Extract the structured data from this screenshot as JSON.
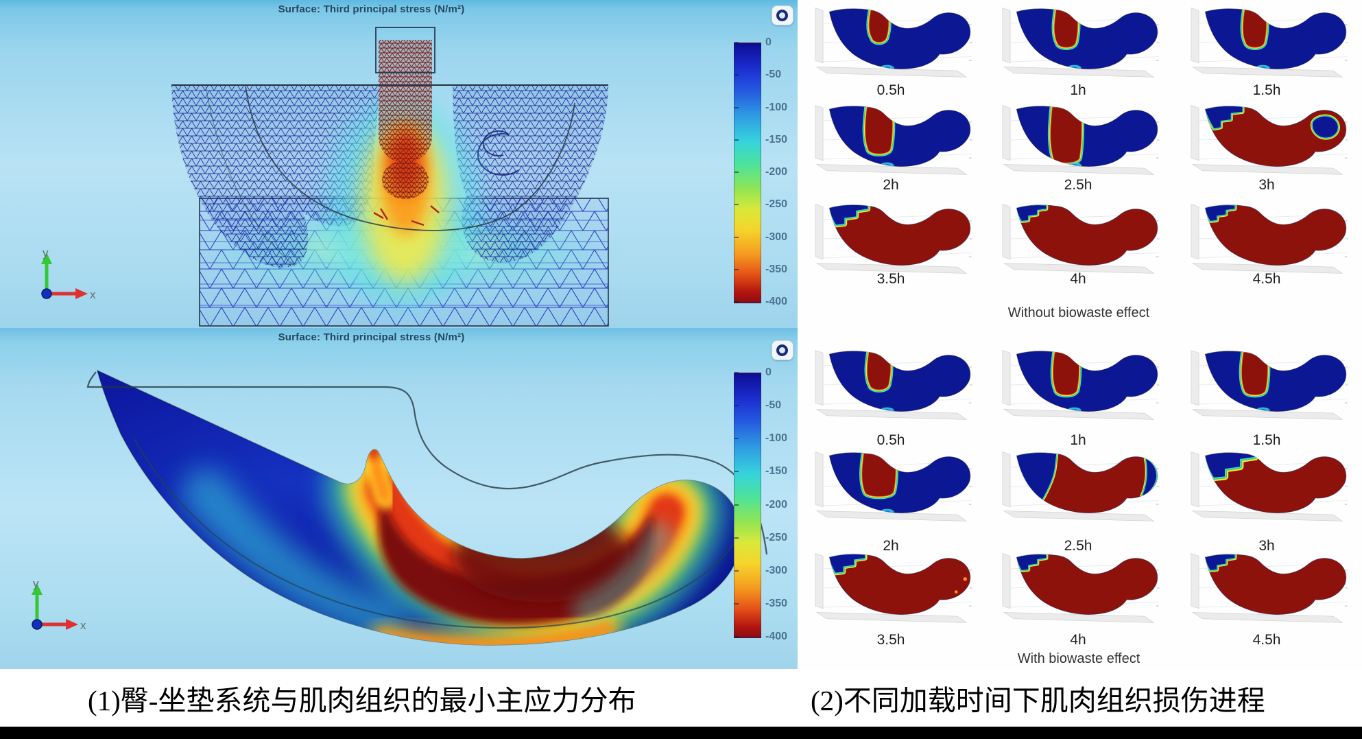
{
  "left": {
    "plots": [
      {
        "title": "Surface: Third principal stress (N/m²)",
        "colorbar": {
          "ticks": [
            "0",
            "-50",
            "-100",
            "-150",
            "-200",
            "-250",
            "-300",
            "-350",
            "-400"
          ]
        },
        "axis": {
          "x": "x",
          "y": "y"
        }
      },
      {
        "title": "Surface: Third principal stress (N/m²)",
        "colorbar": {
          "ticks": [
            "0",
            "-50",
            "-100",
            "-150",
            "-200",
            "-250",
            "-300",
            "-350",
            "-400"
          ]
        },
        "axis": {
          "x": "x",
          "y": "y"
        }
      }
    ]
  },
  "right": {
    "groups": [
      {
        "caption": "Without biowaste effect",
        "cells": [
          {
            "label": "0.5h",
            "variant": "col-s"
          },
          {
            "label": "1h",
            "variant": "col-m"
          },
          {
            "label": "1.5h",
            "variant": "col-m"
          },
          {
            "label": "2h",
            "variant": "col-t"
          },
          {
            "label": "2.5h",
            "variant": "col-f"
          },
          {
            "label": "3h",
            "variant": "mostly-a"
          },
          {
            "label": "3.5h",
            "variant": "full-l"
          },
          {
            "label": "4h",
            "variant": "full-m"
          },
          {
            "label": "4.5h",
            "variant": "full-m"
          }
        ]
      },
      {
        "caption": "With biowaste effect",
        "cells": [
          {
            "label": "0.5h",
            "variant": "col-m"
          },
          {
            "label": "1h",
            "variant": "col-l"
          },
          {
            "label": "1.5h",
            "variant": "col-l"
          },
          {
            "label": "2h",
            "variant": "col-w"
          },
          {
            "label": "2.5h",
            "variant": "mostly-b"
          },
          {
            "label": "3h",
            "variant": "full-xl"
          },
          {
            "label": "3.5h",
            "variant": "full-spots"
          },
          {
            "label": "4h",
            "variant": "full-m"
          },
          {
            "label": "4.5h",
            "variant": "full-m"
          }
        ]
      }
    ]
  },
  "captions": {
    "left": "(1)臀-坐垫系统与肌肉组织的最小主应力分布",
    "right": "(2)不同加载时间下肌肉组织损伤进程"
  },
  "colors": {
    "stress_min": "#0c0c94",
    "stress_max": "#8c0d0d",
    "tissue_blue": "#0c1794",
    "damage_red": "#8e120c",
    "background_sky": "#a9dbf0"
  }
}
